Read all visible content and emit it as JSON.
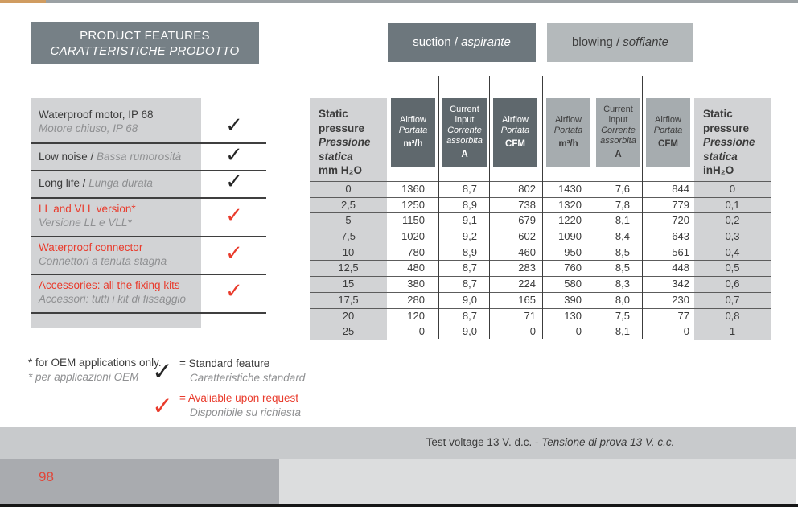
{
  "colors": {
    "accent_orange": "#d09c61",
    "slate_header": "#768086",
    "suction_header": "#6d777d",
    "blowing_header": "#b4b9bb",
    "table_header_dark": "#5f686d",
    "table_header_light": "#a6acaf",
    "cell_gray": "#d2d3d5",
    "request_red": "#e93b2c",
    "muted_gray_text": "#8f9092"
  },
  "features": {
    "title_en": "PRODUCT FEATURES",
    "title_it": "CARATTERISTICHE PRODOTTO",
    "check_glyph": "✓",
    "items": [
      {
        "en": "Waterproof motor, IP 68",
        "it": "Motore chiuso, IP 68",
        "inline": false,
        "type": "standard"
      },
      {
        "en": "Low noise /",
        "it": "Bassa rumorosità",
        "inline": true,
        "type": "standard"
      },
      {
        "en": "Long life /",
        "it": "Lunga durata",
        "inline": true,
        "type": "standard"
      },
      {
        "en": "LL and VLL version*",
        "it": "Versione LL e VLL*",
        "inline": false,
        "type": "request"
      },
      {
        "en": "Waterproof connector",
        "it": "Connettori a tenuta stagna",
        "inline": false,
        "type": "request"
      },
      {
        "en": "Accessories: all the fixing kits",
        "it": "Accessori: tutti i kit di fissaggio",
        "inline": false,
        "type": "request"
      }
    ]
  },
  "legend": {
    "oem_en": "* for OEM applications only.",
    "oem_it": "* per applicazioni OEM",
    "standard_en": "= Standard feature",
    "standard_it": "Caratteristiche standard",
    "request_en": "= Avaliable upon request",
    "request_it": "Disponibile su richiesta"
  },
  "table": {
    "modes": [
      {
        "en": "suction /",
        "it": "aspirante"
      },
      {
        "en": "blowing /",
        "it": "soffiante"
      }
    ],
    "static_pressure_left": {
      "en1": "Static",
      "en2": "pressure",
      "it1": "Pressione",
      "it2": "statica",
      "unit": "mm H₂O"
    },
    "static_pressure_right": {
      "en1": "Static",
      "en2": "pressure",
      "it1": "Pressione",
      "it2": "statica",
      "unit": "inH₂O"
    },
    "col_headers": [
      {
        "en": [
          "Airflow"
        ],
        "it": [
          "Portata"
        ],
        "unit": "m³/h",
        "side": "dark"
      },
      {
        "en": [
          "Current",
          "input"
        ],
        "it": [
          "Corrente",
          "assorbita"
        ],
        "unit": "A",
        "side": "dark"
      },
      {
        "en": [
          "Airflow"
        ],
        "it": [
          "Portata"
        ],
        "unit": "CFM",
        "side": "dark"
      },
      {
        "en": [
          "Airflow"
        ],
        "it": [
          "Portata"
        ],
        "unit": "m³/h",
        "side": "light"
      },
      {
        "en": [
          "Current",
          "input"
        ],
        "it": [
          "Corrente",
          "assorbita"
        ],
        "unit": "A",
        "side": "light"
      },
      {
        "en": [
          "Airflow"
        ],
        "it": [
          "Portata"
        ],
        "unit": "CFM",
        "side": "light"
      }
    ],
    "rows": [
      [
        "0",
        "1360",
        "8,7",
        "802",
        "1430",
        "7,6",
        "844",
        "0"
      ],
      [
        "2,5",
        "1250",
        "8,9",
        "738",
        "1320",
        "7,8",
        "779",
        "0,1"
      ],
      [
        "5",
        "1150",
        "9,1",
        "679",
        "1220",
        "8,1",
        "720",
        "0,2"
      ],
      [
        "7,5",
        "1020",
        "9,2",
        "602",
        "1090",
        "8,4",
        "643",
        "0,3"
      ],
      [
        "10",
        "780",
        "8,9",
        "460",
        "950",
        "8,5",
        "561",
        "0,4"
      ],
      [
        "12,5",
        "480",
        "8,7",
        "283",
        "760",
        "8,5",
        "448",
        "0,5"
      ],
      [
        "15",
        "380",
        "8,7",
        "224",
        "580",
        "8,3",
        "342",
        "0,6"
      ],
      [
        "17,5",
        "280",
        "9,0",
        "165",
        "390",
        "8,0",
        "230",
        "0,7"
      ],
      [
        "20",
        "120",
        "8,7",
        "71",
        "130",
        "7,5",
        "77",
        "0,8"
      ],
      [
        "25",
        "0",
        "9,0",
        "0",
        "0",
        "8,1",
        "0",
        "1"
      ]
    ]
  },
  "footer": {
    "test_voltage_en": "Test voltage 13 V. d.c. -",
    "test_voltage_it": "Tensione di prova 13 V. c.c.",
    "page_number": "98"
  }
}
